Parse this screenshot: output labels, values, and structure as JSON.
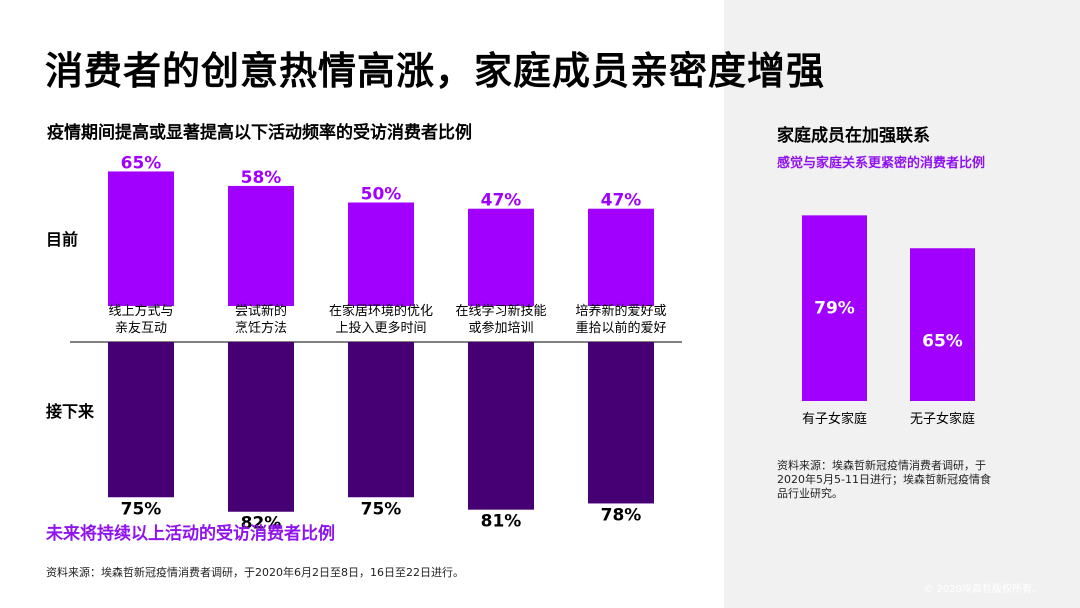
{
  "page": {
    "title": "消费者的创意热情高涨，家庭成员亲密度增强",
    "copyright": "© 2020埃森哲版权所有。"
  },
  "left": {
    "chart_title": "疫情期间提高或显著提高以下活动频率的受访消费者比例",
    "row_label_now": "目前",
    "row_label_next": "接下来",
    "bottom_caption": "未来将持续以上活动的受访消费者比例",
    "source": "资料来源：埃森哲新冠疫情消费者调研，于2020年6月2日至8日，16日至22日进行。"
  },
  "right": {
    "title": "家庭成员在加强联系",
    "subtitle": "感觉与家庭关系更紧密的消费者比例",
    "source_lines": [
      "资料来源：埃森哲新冠疫情消费者调研，于",
      "2020年5月5-11日进行；埃森哲新冠疫情食",
      "品行业研究。"
    ]
  },
  "colors": {
    "purple": "#a100ff",
    "dark_purple": "#460073",
    "accent_text": "#9013ef",
    "panel_bg": "#f1f1f1"
  },
  "chart_data": [
    {
      "type": "bar",
      "title": "疫情期间提高或显著提高以下活动频率的受访消费者比例",
      "categories": [
        [
          "线上方式与",
          "亲友互动"
        ],
        [
          "尝试新的",
          "烹饪方法"
        ],
        [
          "在家居环境的优化",
          "上投入更多时间"
        ],
        [
          "在线学习新技能",
          "或参加培训"
        ],
        [
          "培养新的爱好或",
          "重拾以前的爱好"
        ]
      ],
      "series": [
        {
          "name": "目前",
          "values": [
            65,
            58,
            50,
            47,
            47
          ],
          "labels": [
            "65%",
            "58%",
            "50%",
            "47%",
            "47%"
          ]
        },
        {
          "name": "接下来",
          "values": [
            75,
            82,
            75,
            81,
            78
          ],
          "labels": [
            "75%",
            "82%",
            "75%",
            "81%",
            "78%"
          ]
        }
      ],
      "ylim": [
        0,
        100
      ],
      "unit": "%"
    },
    {
      "type": "bar",
      "title": "感觉与家庭关系更紧密的消费者比例",
      "categories": [
        "有子女家庭",
        "无子女家庭"
      ],
      "values": [
        79,
        65
      ],
      "labels": [
        "79%",
        "65%"
      ],
      "ylim": [
        0,
        100
      ],
      "unit": "%"
    }
  ]
}
